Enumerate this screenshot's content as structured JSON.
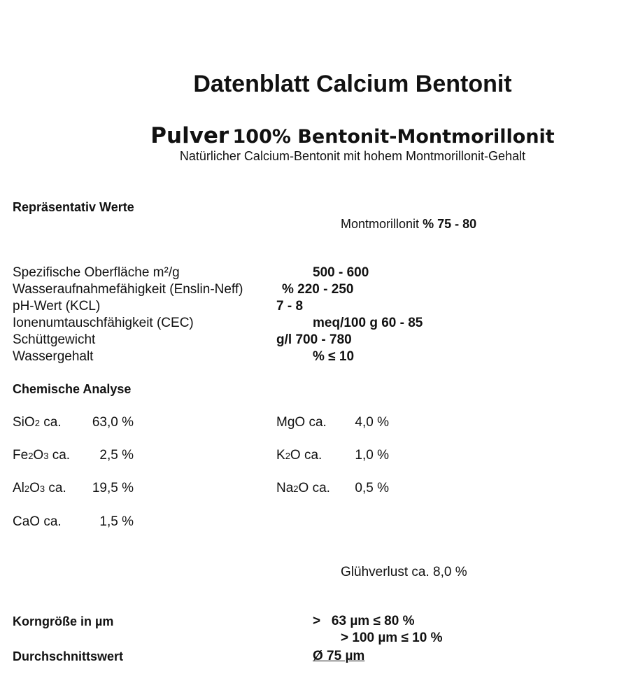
{
  "title": "Datenblatt Calcium Bentonit",
  "subtitle_lead": "Pulver",
  "subtitle_rest": "100% Bentonit-Montmorillonit",
  "description": "Natürlicher Calcium-Bentonit mit hohem Montmorillonit-Gehalt",
  "representative": {
    "heading": "Repräsentativ Werte",
    "montmorillonit_label": "Montmorillonit",
    "montmorillonit_value": "% 75 - 80"
  },
  "properties": [
    {
      "label": "Spezifische Oberfläche m²/g",
      "value": "500 - 600"
    },
    {
      "label": "Wasseraufnahmefähigkeit (Enslin-Neff)",
      "value": "% 220 - 250"
    },
    {
      "label": "pH-Wert (KCL)",
      "value": "7 - 8"
    },
    {
      "label": "Ionenumtauschfähigkeit (CEC)",
      "value": "meq/100 g 60 - 85"
    },
    {
      "label": "Schüttgewicht",
      "value": "g/l 700 - 780"
    },
    {
      "label": "Wassergehalt",
      "value": "% ≤ 10"
    }
  ],
  "chemical": {
    "heading": "Chemische Analyse",
    "items": [
      {
        "formula": "SiO2",
        "suffix": "ca.",
        "value": "63,0 %"
      },
      {
        "formula": "Fe2O3",
        "suffix": "ca.",
        "value": "2,5 %"
      },
      {
        "formula": "Al2O3",
        "suffix": "ca.",
        "value": "19,5 %"
      },
      {
        "formula": "CaO",
        "suffix": "ca.",
        "value": "1,5 %"
      },
      {
        "formula": "MgO",
        "suffix": "ca.",
        "value": "4,0 %"
      },
      {
        "formula": "K2O",
        "suffix": "ca.",
        "value": "1,0 %"
      },
      {
        "formula": "Na2O",
        "suffix": "ca.",
        "value": "0,5 %"
      }
    ],
    "loss_on_ignition": "Glühverlust ca. 8,0 %"
  },
  "grain": {
    "heading": "Korngröße in µm",
    "line1": ">   63 µm ≤ 80 %",
    "line2": "> 100 µm ≤ 10 %",
    "average_label": "Durchschnittswert",
    "average_value": "Ø 75 µm"
  }
}
